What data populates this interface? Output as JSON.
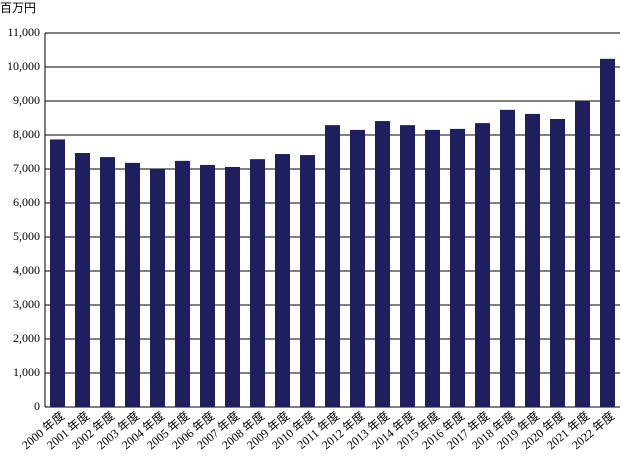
{
  "chart_data": {
    "type": "bar",
    "unit_label": "百万円",
    "categories": [
      "2000 年度",
      "2001 年度",
      "2002 年度",
      "2003 年度",
      "2004 年度",
      "2005 年度",
      "2006 年度",
      "2007 年度",
      "2008 年度",
      "2009 年度",
      "2010 年度",
      "2011 年度",
      "2012 年度",
      "2013 年度",
      "2014 年度",
      "2015 年度",
      "2016 年度",
      "2017 年度",
      "2018 年度",
      "2019 年度",
      "2020 年度",
      "2021 年度",
      "2022 年度"
    ],
    "values": [
      7870,
      7470,
      7350,
      7180,
      7000,
      7240,
      7120,
      7060,
      7290,
      7440,
      7410,
      8290,
      8150,
      8410,
      8290,
      8150,
      8180,
      8350,
      8740,
      8620,
      8470,
      9000,
      10240
    ],
    "color": "#1f1f5f",
    "ylim": [
      0,
      11000
    ],
    "yticks": [
      0,
      {
        "value": 1000,
        "label": "1,000"
      },
      {
        "value": 2000,
        "label": "2,000"
      },
      {
        "value": 3000,
        "label": "3,000"
      },
      {
        "value": 4000,
        "label": "4,000"
      },
      {
        "value": 5000,
        "label": "5,000"
      },
      {
        "value": 6000,
        "label": "6,000"
      },
      {
        "value": 7000,
        "label": "7,000"
      },
      {
        "value": 8000,
        "label": "8,000"
      },
      {
        "value": 9000,
        "label": "9,000"
      },
      {
        "value": 10000,
        "label": "10,000"
      },
      {
        "value": 11000,
        "label": "11,000"
      }
    ],
    "grid": true
  }
}
